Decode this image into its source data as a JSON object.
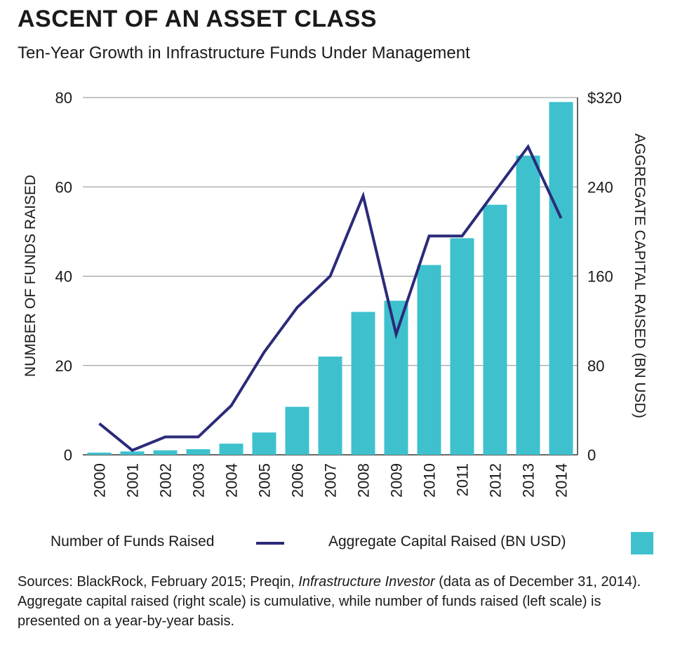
{
  "title": "ASCENT OF AN ASSET CLASS",
  "subtitle": "Ten-Year Growth in Infrastructure Funds Under Management",
  "legend": {
    "line_label": "Number of Funds Raised",
    "bar_label": "Aggregate Capital Raised (BN USD)"
  },
  "source": {
    "prefix": "Sources: BlackRock, February 2015; Preqin, ",
    "italic": "Infrastructure Investor",
    "suffix": " (data as of December 31, 2014). Aggregate capital raised (right scale) is cumulative, while number of funds raised (left scale) is presented on a year-by-year basis."
  },
  "colors": {
    "bar": "#3ec1cd",
    "line": "#2b2a7a",
    "grid": "#8a8f8f"
  },
  "chart_data": {
    "type": "bar+line",
    "categories": [
      "2000",
      "2001",
      "2002",
      "2003",
      "2004",
      "2005",
      "2006",
      "2007",
      "2008",
      "2009",
      "2010",
      "2011",
      "2012",
      "2013",
      "2014"
    ],
    "series": [
      {
        "name": "Aggregate Capital Raised (BN USD)",
        "type": "bar",
        "axis": "right",
        "values": [
          2,
          3,
          4,
          5,
          10,
          20,
          43,
          88,
          128,
          138,
          170,
          194,
          224,
          268,
          316
        ]
      },
      {
        "name": "Number of Funds Raised",
        "type": "line",
        "axis": "left",
        "values": [
          7,
          1,
          4,
          4,
          11,
          23,
          33,
          40,
          58,
          27,
          49,
          49,
          59,
          69,
          53
        ]
      }
    ],
    "ylabel_left": "NUMBER OF FUNDS RAISED",
    "ylabel_right": "AGGREGATE CAPITAL RAISED (BN USD)",
    "ylim_left": [
      0,
      80
    ],
    "ylim_right": [
      0,
      320
    ],
    "yticks_left": [
      "0",
      "20",
      "40",
      "60",
      "80"
    ],
    "yticks_right": [
      "0",
      "80",
      "160",
      "240",
      "$320"
    ],
    "grid": true
  }
}
